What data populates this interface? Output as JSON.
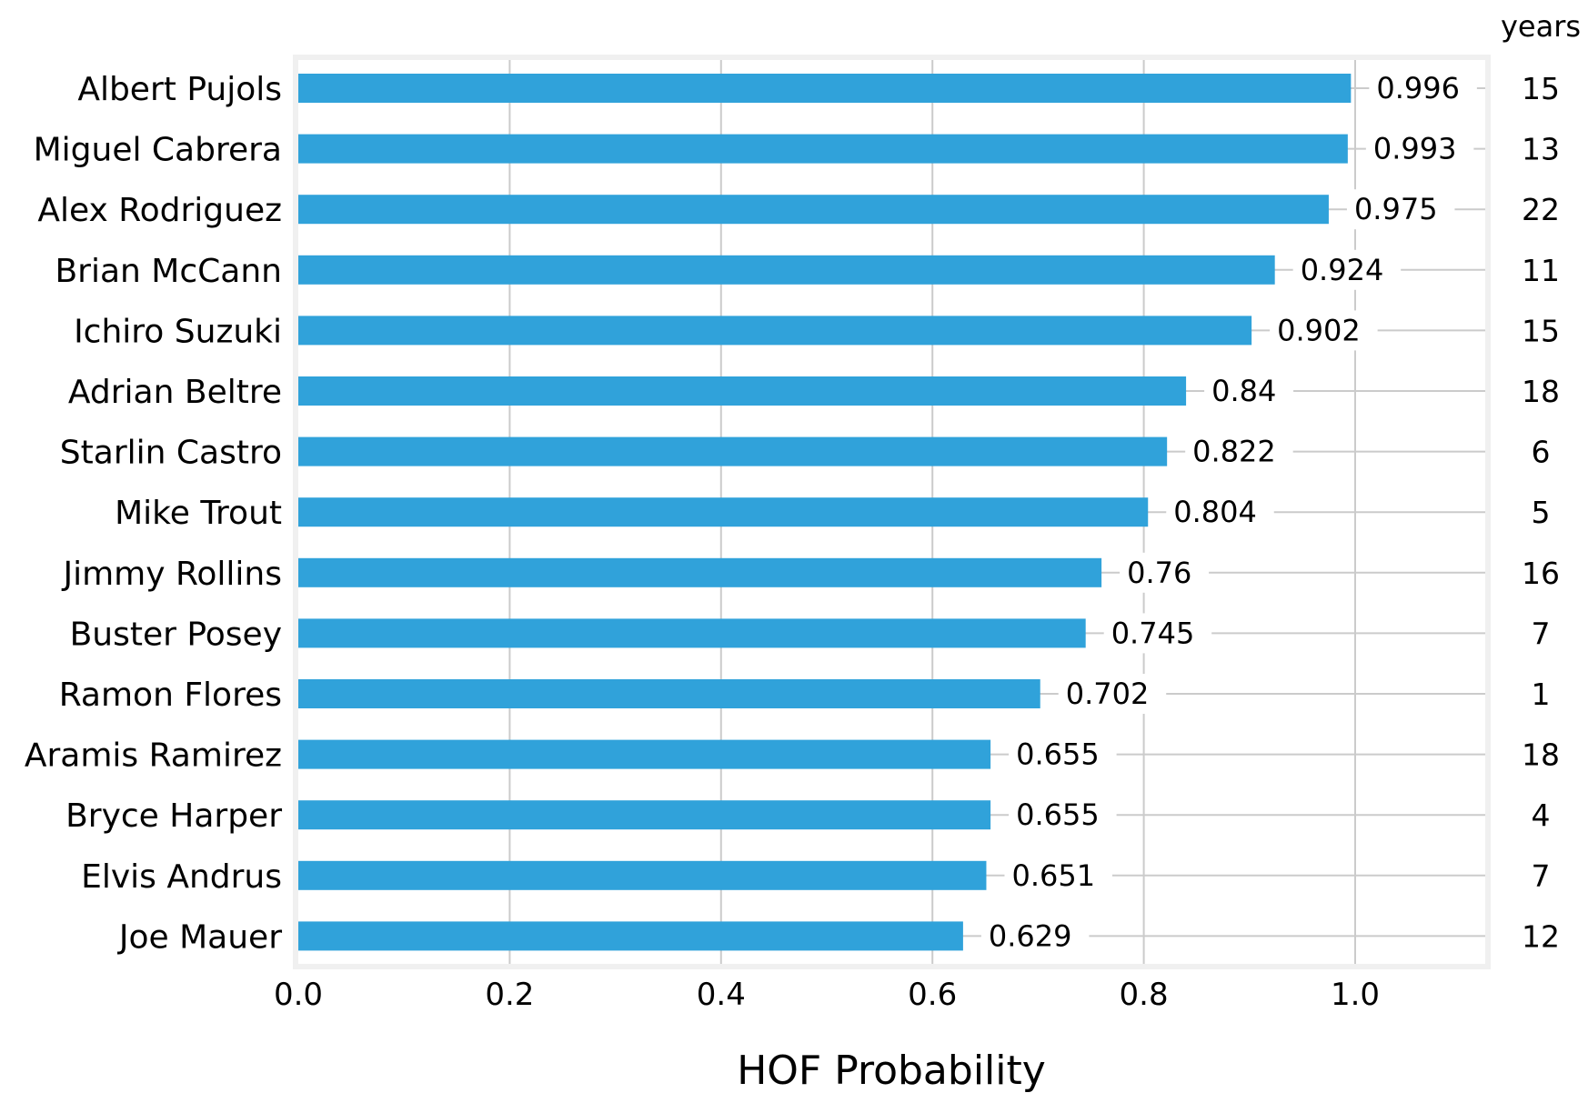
{
  "chart_data": {
    "type": "bar",
    "orientation": "horizontal",
    "xlabel": "HOF Probability",
    "ylabel": "",
    "xlim": [
      0,
      1.12
    ],
    "grid": true,
    "x_ticks": [
      "0.0",
      "0.2",
      "0.4",
      "0.6",
      "0.8",
      "1.0"
    ],
    "x_tick_values": [
      0.0,
      0.2,
      0.4,
      0.6,
      0.8,
      1.0
    ],
    "colors": {
      "bar": "#30a2da",
      "grid": "#cbcbcb",
      "frame": "#f0f0f0"
    },
    "right_column_header": "years",
    "categories": [
      "Albert Pujols",
      "Miguel Cabrera",
      "Alex Rodriguez",
      "Brian McCann",
      "Ichiro Suzuki",
      "Adrian Beltre",
      "Starlin Castro",
      "Mike Trout",
      "Jimmy Rollins",
      "Buster Posey",
      "Ramon Flores",
      "Aramis Ramirez",
      "Bryce Harper",
      "Elvis Andrus",
      "Joe Mauer"
    ],
    "values": [
      0.996,
      0.993,
      0.975,
      0.924,
      0.902,
      0.84,
      0.822,
      0.804,
      0.76,
      0.745,
      0.702,
      0.655,
      0.655,
      0.651,
      0.629
    ],
    "value_labels": [
      "0.996",
      "0.993",
      "0.975",
      "0.924",
      "0.902",
      "0.84",
      "0.822",
      "0.804",
      "0.76",
      "0.745",
      "0.702",
      "0.655",
      "0.655",
      "0.651",
      "0.629"
    ],
    "years": [
      "15",
      "13",
      "22",
      "11",
      "15",
      "18",
      "6",
      "5",
      "16",
      "7",
      "1",
      "18",
      "4",
      "7",
      "12"
    ]
  }
}
